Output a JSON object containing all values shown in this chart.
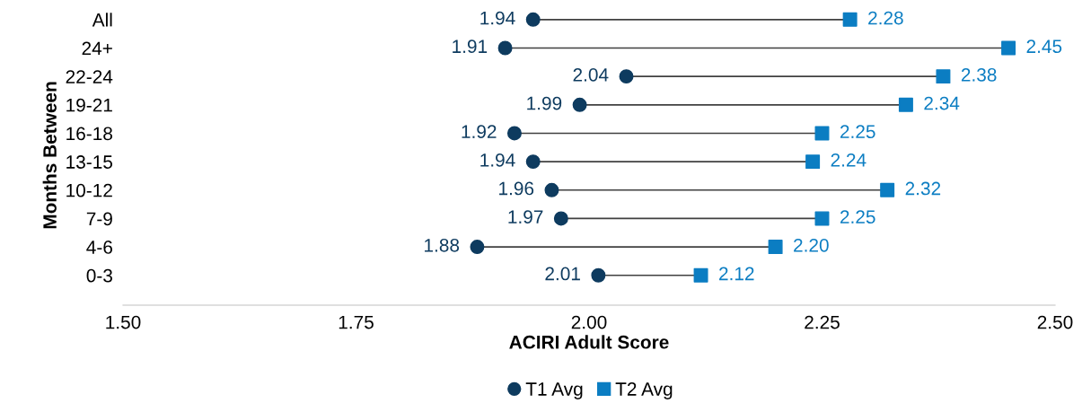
{
  "chart_data": {
    "type": "scatter",
    "orientation": "horizontal",
    "xlabel": "ACIRI Adult Score",
    "ylabel": "Months Between",
    "categories": [
      "All",
      "24+",
      "22-24",
      "19-21",
      "16-18",
      "13-15",
      "10-12",
      "7-9",
      "4-6",
      "0-3"
    ],
    "series": [
      {
        "name": "T1 Avg",
        "color": "#0e3b5f",
        "marker": "circle",
        "values": [
          1.94,
          1.91,
          2.04,
          1.99,
          1.92,
          1.94,
          1.96,
          1.97,
          1.88,
          2.01
        ],
        "value_labels": [
          "1.94",
          "1.91",
          "2.04",
          "1.99",
          "1.92",
          "1.94",
          "1.96",
          "1.97",
          "1.88",
          "2.01"
        ]
      },
      {
        "name": "T2 Avg",
        "color": "#0b7dc2",
        "marker": "square",
        "values": [
          2.28,
          2.45,
          2.38,
          2.34,
          2.25,
          2.24,
          2.32,
          2.25,
          2.2,
          2.12
        ],
        "value_labels": [
          "2.28",
          "2.45",
          "2.38",
          "2.34",
          "2.25",
          "2.24",
          "2.32",
          "2.25",
          "2.20",
          "2.12"
        ]
      }
    ],
    "xlim": [
      1.5,
      2.5
    ],
    "xticks": [
      {
        "value": 1.5,
        "label": "1.50"
      },
      {
        "value": 1.75,
        "label": "1.75"
      },
      {
        "value": 2.0,
        "label": "2.00"
      },
      {
        "value": 2.25,
        "label": "2.25"
      },
      {
        "value": 2.5,
        "label": "2.50"
      }
    ],
    "grid": false,
    "legend": "bottom"
  }
}
